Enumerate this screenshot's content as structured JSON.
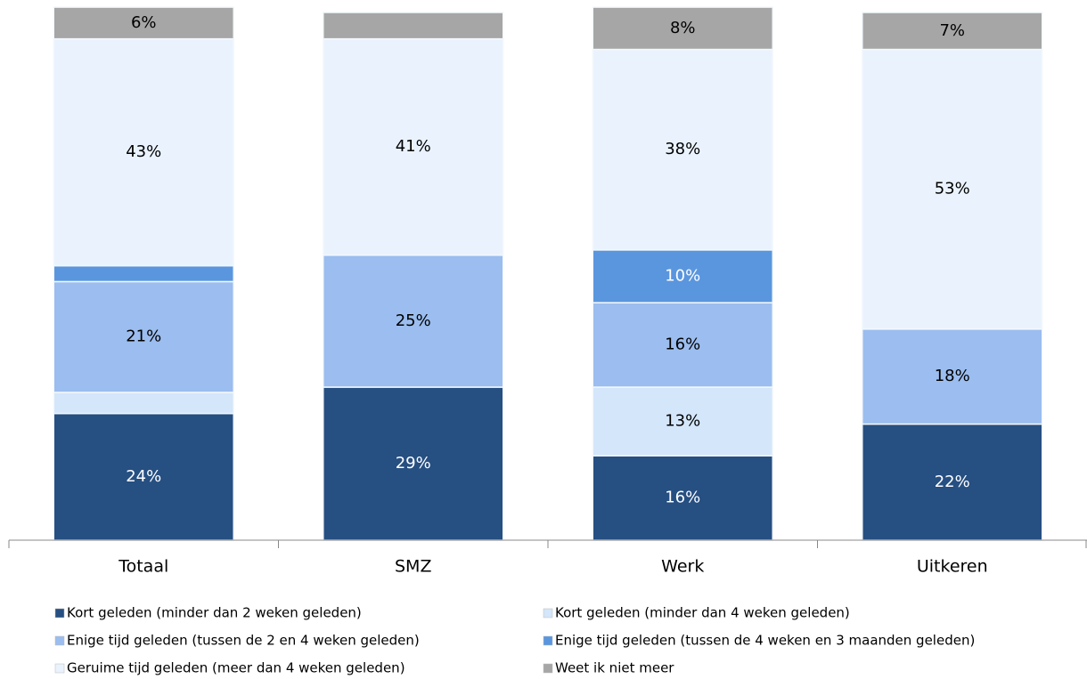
{
  "chart_data": {
    "type": "stacked-bar",
    "categories": [
      "Totaal",
      "SMZ",
      "Werk",
      "Uitkeren"
    ],
    "ylim": [
      0,
      100
    ],
    "series": [
      {
        "name": "Kort geleden (minder dan 2 weken geleden)",
        "color": "#264f82",
        "values": [
          24,
          29,
          16,
          22
        ],
        "value_labels": [
          "24%",
          "29%",
          "16%",
          "22%"
        ]
      },
      {
        "name": "Kort geleden (minder dan 4 weken geleden)",
        "color": "#d4e6fa",
        "values": [
          4,
          0,
          13,
          0
        ],
        "value_labels": [
          null,
          null,
          "13%",
          null
        ]
      },
      {
        "name": "Enige tijd geleden (tussen de 2 en 4 weken geleden)",
        "color": "#9bbdef",
        "values": [
          21,
          25,
          16,
          18
        ],
        "value_labels": [
          "21%",
          "25%",
          "16%",
          "18%"
        ]
      },
      {
        "name": "Enige tijd geleden (tussen de 4 weken en 3 maanden geleden)",
        "color": "#5a96de",
        "values": [
          3,
          0,
          10,
          0
        ],
        "value_labels": [
          null,
          null,
          "10%",
          null
        ]
      },
      {
        "name": "Geruime tijd geleden (meer dan 4 weken geleden)",
        "color": "#eaf3fd",
        "values": [
          43,
          41,
          38,
          53
        ],
        "value_labels": [
          "43%",
          "41%",
          "38%",
          "53%"
        ]
      },
      {
        "name": "Weet ik niet meer",
        "color": "#a6a6a6",
        "values": [
          6,
          5,
          8,
          7
        ],
        "value_labels": [
          "6%",
          null,
          "8%",
          "7%"
        ]
      }
    ]
  }
}
